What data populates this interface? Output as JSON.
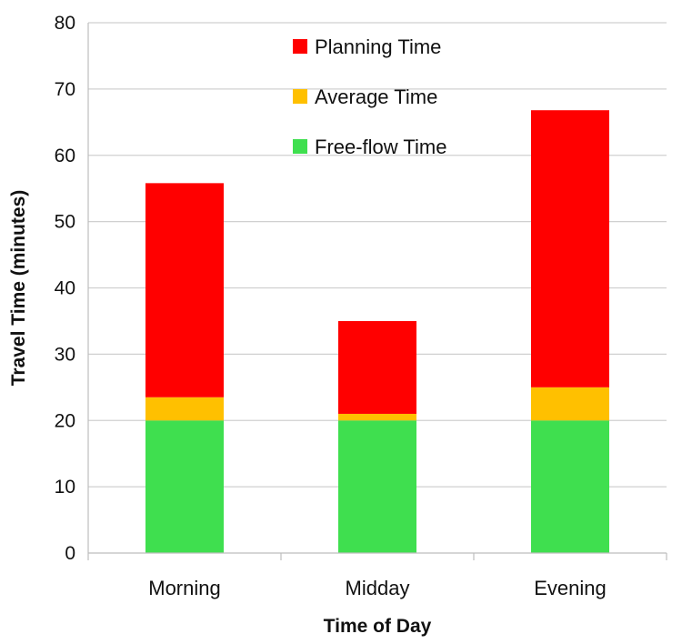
{
  "chart_data": {
    "type": "bar",
    "stacked": true,
    "categories": [
      "Morning",
      "Midday",
      "Evening"
    ],
    "series": [
      {
        "name": "Free-flow Time",
        "color": "#3fdf4f",
        "values": [
          20,
          20,
          20
        ]
      },
      {
        "name": "Average Time",
        "color": "#ffc000",
        "values": [
          3.5,
          1,
          5
        ]
      },
      {
        "name": "Planning Time",
        "color": "#ff0000",
        "values": [
          32.3,
          14,
          41.8
        ]
      }
    ],
    "xlabel": "Time of Day",
    "ylabel": "Travel Time (minutes)",
    "ylim": [
      0,
      80
    ],
    "yticks": [
      0,
      10,
      20,
      30,
      40,
      50,
      60,
      70,
      80
    ],
    "grid": true,
    "legend": {
      "placement": "top-center",
      "entries": [
        "Planning Time",
        "Average Time",
        "Free-flow Time"
      ]
    }
  }
}
